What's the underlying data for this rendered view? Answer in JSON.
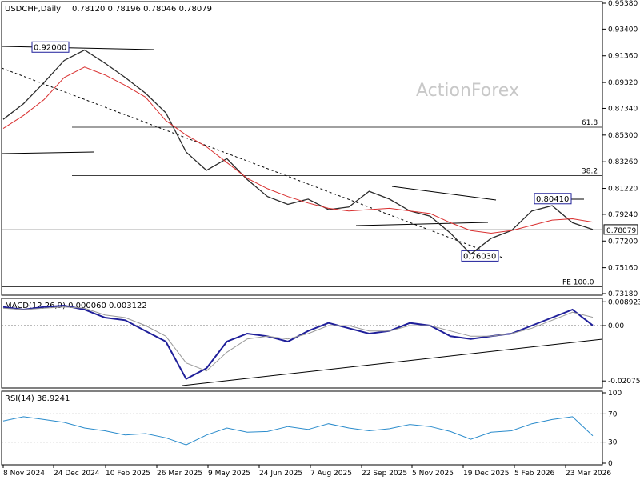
{
  "chart_data": [
    {
      "panel": "price",
      "type": "line",
      "title": "USDCHF,Daily",
      "ohlc_label": "0.78120 0.78196 0.78046 0.78079",
      "watermark": "ActionForex",
      "ylim": [
        0.7318,
        0.9538
      ],
      "y_ticks": [
        "0.95380",
        "0.93400",
        "0.91360",
        "0.89320",
        "0.87340",
        "0.85300",
        "0.83260",
        "0.81220",
        "0.79240",
        "0.77200",
        "0.75160",
        "0.73180"
      ],
      "last_price": "0.78079",
      "fib_levels": [
        {
          "label": "61.8",
          "value": 0.859
        },
        {
          "label": "38.2",
          "value": 0.822
        },
        {
          "label": "FE 100.0",
          "value": 0.737
        }
      ],
      "annotations": [
        {
          "label": "0.92000",
          "value": 0.92
        },
        {
          "label": "0.80410",
          "value": 0.8041
        },
        {
          "label": "0.76030",
          "value": 0.7603
        }
      ],
      "series": [
        {
          "values": [
            0.865,
            0.877,
            0.893,
            0.91,
            0.918,
            0.908,
            0.897,
            0.885,
            0.87,
            0.84,
            0.826,
            0.835,
            0.819,
            0.806,
            0.8,
            0.804,
            0.796,
            0.798,
            0.81,
            0.804,
            0.795,
            0.791,
            0.778,
            0.762,
            0.774,
            0.78,
            0.795,
            0.799,
            0.786,
            0.7808
          ],
          "color": "#2b2b2b"
        },
        {
          "values": [
            0.858,
            0.868,
            0.88,
            0.897,
            0.905,
            0.899,
            0.891,
            0.882,
            0.864,
            0.853,
            0.844,
            0.832,
            0.82,
            0.812,
            0.806,
            0.801,
            0.797,
            0.795,
            0.796,
            0.797,
            0.795,
            0.793,
            0.786,
            0.78,
            0.778,
            0.78,
            0.784,
            0.788,
            0.789,
            0.7865
          ],
          "color": "#d93030"
        }
      ]
    },
    {
      "panel": "macd",
      "type": "line",
      "title": "MACD(12,26,9) 0.000060 0.003122",
      "y_ticks": [
        "0.008923",
        "0.00",
        "-0.020759"
      ],
      "ylim": [
        -0.0228,
        0.0096
      ],
      "series": [
        {
          "values": [
            0.007,
            0.006,
            0.007,
            0.0075,
            0.006,
            0.003,
            0.002,
            -0.002,
            -0.006,
            -0.02,
            -0.016,
            -0.006,
            -0.003,
            -0.004,
            -0.006,
            -0.002,
            0.001,
            -0.001,
            -0.003,
            -0.002,
            0.001,
            0.0,
            -0.004,
            -0.005,
            -0.004,
            -0.003,
            0.0,
            0.003,
            0.006,
            6e-05
          ],
          "color": "#1f1f9a"
        },
        {
          "values": [
            0.0065,
            0.006,
            0.0065,
            0.007,
            0.0065,
            0.004,
            0.003,
            0.0,
            -0.004,
            -0.014,
            -0.017,
            -0.01,
            -0.005,
            -0.004,
            -0.005,
            -0.003,
            0.0,
            0.0,
            -0.002,
            -0.002,
            0.0,
            0.0,
            -0.002,
            -0.004,
            -0.004,
            -0.003,
            -0.001,
            0.002,
            0.005,
            0.003122
          ],
          "color": "#9a9a9a"
        }
      ]
    },
    {
      "panel": "rsi",
      "type": "line",
      "title": "RSI(14) 38.9241",
      "y_ticks": [
        "100",
        "70",
        "30",
        "0"
      ],
      "ylim": [
        0,
        100
      ],
      "series": [
        {
          "values": [
            60,
            66,
            62,
            58,
            50,
            46,
            40,
            42,
            36,
            26,
            40,
            50,
            44,
            45,
            52,
            48,
            56,
            50,
            46,
            49,
            55,
            52,
            45,
            34,
            44,
            46,
            56,
            62,
            66,
            38.92
          ],
          "color": "#2b8ccc"
        }
      ]
    }
  ],
  "x_ticks": [
    "8 Nov 2024",
    "24 Dec 2024",
    "10 Feb 2025",
    "26 Mar 2025",
    "9 May 2025",
    "24 Jun 2025",
    "7 Aug 2025",
    "22 Sep 2025",
    "5 Nov 2025",
    "19 Dec 2025",
    "5 Feb 2026",
    "23 Mar 2026"
  ]
}
